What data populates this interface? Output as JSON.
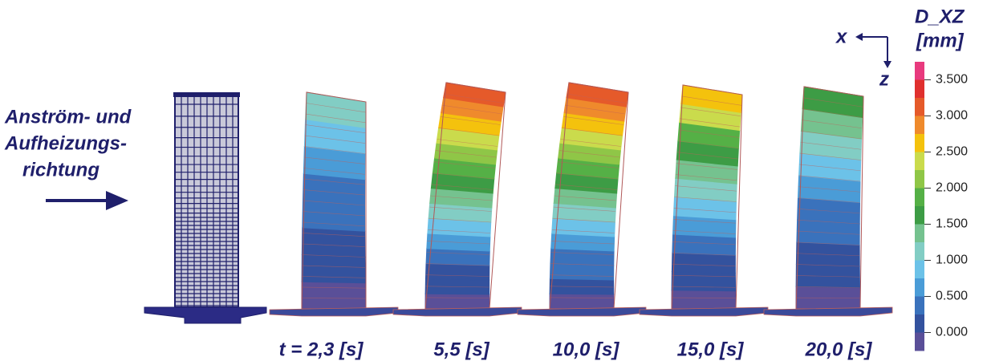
{
  "flow_label": {
    "lines": [
      "Anström- und",
      "Aufheizungs-",
      "richtung"
    ]
  },
  "axes": {
    "x": "x",
    "z": "z"
  },
  "legend": {
    "title": "D_XZ",
    "unit": "[mm]",
    "ticks": [
      "3.500",
      "3.000",
      "2.500",
      "2.000",
      "1.500",
      "1.000",
      "0.500",
      "0.000"
    ]
  },
  "time_labels": [
    "t =  2,3 [s]",
    "5,5 [s]",
    "10,0 [s]",
    "15,0 [s]",
    "20,0 [s]"
  ]
}
